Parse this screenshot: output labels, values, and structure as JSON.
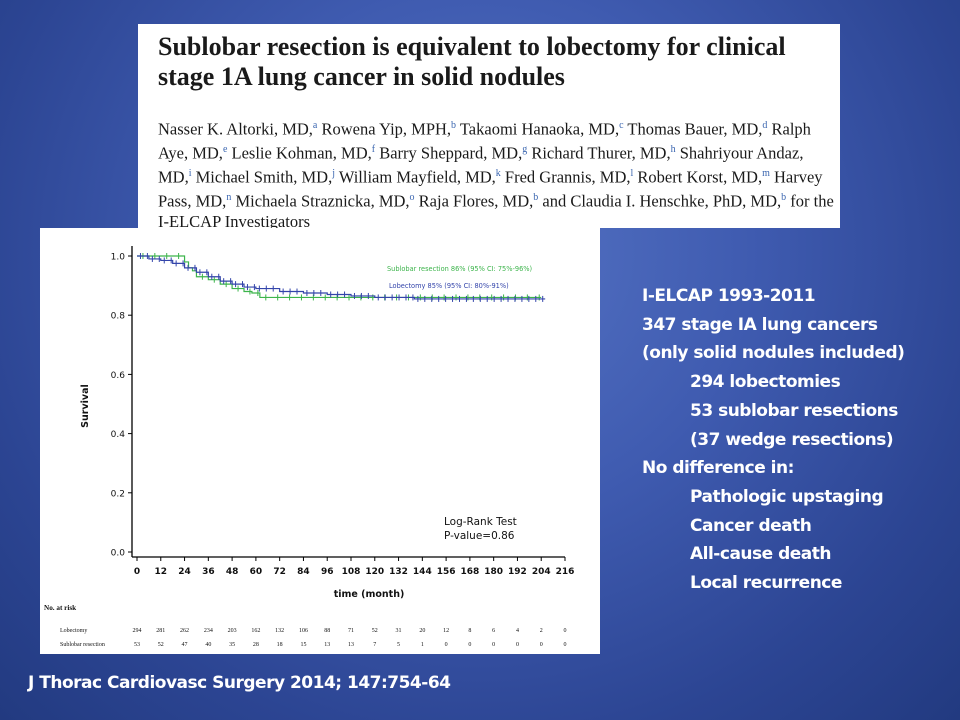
{
  "paper": {
    "title": "Sublobar resection is equivalent to lobectomy for clinical stage 1A lung cancer in solid nodules",
    "authors": [
      {
        "name": "Nasser K. Altorki, MD,",
        "sup": "a"
      },
      {
        "name": "Rowena Yip, MPH,",
        "sup": "b"
      },
      {
        "name": "Takaomi Hanaoka, MD,",
        "sup": "c"
      },
      {
        "name": "Thomas Bauer, MD,",
        "sup": "d"
      },
      {
        "name": "Ralph Aye, MD,",
        "sup": "e"
      },
      {
        "name": "Leslie Kohman, MD,",
        "sup": "f"
      },
      {
        "name": "Barry Sheppard, MD,",
        "sup": "g"
      },
      {
        "name": "Richard Thurer, MD,",
        "sup": "h"
      },
      {
        "name": "Shahriyour Andaz, MD,",
        "sup": "i"
      },
      {
        "name": "Michael Smith, MD,",
        "sup": "j"
      },
      {
        "name": "William Mayfield, MD,",
        "sup": "k"
      },
      {
        "name": "Fred Grannis, MD,",
        "sup": "l"
      },
      {
        "name": "Robert Korst, MD,",
        "sup": "m"
      },
      {
        "name": "Harvey Pass, MD,",
        "sup": "n"
      },
      {
        "name": "Michaela Straznicka, MD,",
        "sup": "o"
      },
      {
        "name": "Raja Flores, MD,",
        "sup": "b"
      },
      {
        "name": "and Claudia I. Henschke, PhD, MD,",
        "sup": "b"
      },
      {
        "name": "for the I-ELCAP Investigators",
        "sup": ""
      }
    ]
  },
  "chart_data": {
    "type": "line",
    "ylabel": "Survival",
    "xlabel": "time (month)",
    "xlim": [
      0,
      216
    ],
    "ylim": [
      0,
      1.0
    ],
    "x_ticks": [
      0,
      12,
      24,
      36,
      48,
      60,
      72,
      84,
      96,
      108,
      120,
      132,
      144,
      156,
      168,
      180,
      192,
      204,
      216
    ],
    "y_ticks": [
      0.0,
      0.2,
      0.4,
      0.6,
      0.8,
      1.0
    ],
    "y_tick_labels": [
      "0.0",
      "0.2",
      "0.4",
      "0.6",
      "0.8",
      "1.0"
    ],
    "series": [
      {
        "name": "Sublobar resection 86% (95% CI: 75%-96%)",
        "color": "#3cb44b",
        "steps": [
          [
            0,
            1.0
          ],
          [
            24,
            0.98
          ],
          [
            26,
            0.96
          ],
          [
            28,
            0.95
          ],
          [
            30,
            0.93
          ],
          [
            36,
            0.92
          ],
          [
            42,
            0.905
          ],
          [
            48,
            0.89
          ],
          [
            54,
            0.88
          ],
          [
            58,
            0.875
          ],
          [
            62,
            0.86
          ],
          [
            204,
            0.86
          ]
        ]
      },
      {
        "name": "Lobectomy 85% (95% CI: 80%-91%)",
        "color": "#3344aa",
        "steps": [
          [
            0,
            1.0
          ],
          [
            6,
            0.99
          ],
          [
            12,
            0.985
          ],
          [
            18,
            0.975
          ],
          [
            24,
            0.96
          ],
          [
            30,
            0.945
          ],
          [
            36,
            0.93
          ],
          [
            42,
            0.915
          ],
          [
            48,
            0.905
          ],
          [
            54,
            0.895
          ],
          [
            60,
            0.89
          ],
          [
            72,
            0.88
          ],
          [
            84,
            0.875
          ],
          [
            96,
            0.87
          ],
          [
            108,
            0.865
          ],
          [
            120,
            0.86
          ],
          [
            140,
            0.855
          ],
          [
            206,
            0.855
          ]
        ]
      }
    ],
    "annotation": [
      "Log-Rank Test",
      "P-value=0.86"
    ],
    "risk_table": {
      "title": "No. at risk",
      "rows": [
        {
          "label": "Lobectomy",
          "values": [
            "294",
            "281",
            "262",
            "234",
            "203",
            "162",
            "132",
            "106",
            "88",
            "71",
            "52",
            "31",
            "20",
            "12",
            "8",
            "6",
            "4",
            "2",
            "0"
          ]
        },
        {
          "label": "Sublobar resection",
          "values": [
            "53",
            "52",
            "47",
            "40",
            "35",
            "28",
            "18",
            "15",
            "13",
            "13",
            "7",
            "5",
            "1",
            "0",
            "0",
            "0",
            "0",
            "0",
            "0"
          ]
        }
      ]
    }
  },
  "summary": {
    "lines": [
      {
        "text": "I-ELCAP 1993-2011",
        "indent": false
      },
      {
        "text": "347 stage IA lung cancers",
        "indent": false
      },
      {
        "text": "(only solid nodules included)",
        "indent": false
      },
      {
        "text": "294 lobectomies",
        "indent": true
      },
      {
        "text": "53 sublobar resections",
        "indent": true
      },
      {
        "text": "(37 wedge resections)",
        "indent": true
      },
      {
        "text": "No difference in:",
        "indent": false
      },
      {
        "text": "Pathologic upstaging",
        "indent": true
      },
      {
        "text": "Cancer death",
        "indent": true
      },
      {
        "text": "All-cause death",
        "indent": true
      },
      {
        "text": "Local recurrence",
        "indent": true
      }
    ]
  },
  "citation": "J Thorac Cardiovasc Surgery 2014; 147:754-64"
}
